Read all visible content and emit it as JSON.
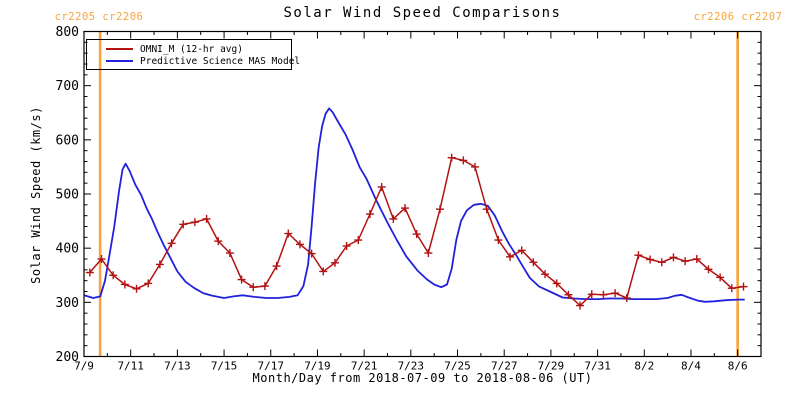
{
  "header": {
    "title": "Solar Wind Speed Comparisons",
    "carrington_label_left": "cr2205 cr2206",
    "carrington_label_right": "cr2206 cr2207"
  },
  "colors": {
    "omni_red": "#b31212",
    "mas_blue": "#2121dd",
    "carrington_orange": "#f7a43c",
    "axis": "#000000",
    "background": "#ffffff"
  },
  "chart_data": {
    "type": "line",
    "title": "Solar Wind Speed Comparisons",
    "xlabel": "Month/Day from 2018-07-09 to 2018-08-06 (UT)",
    "ylabel": "Solar Wind Speed (km/s)",
    "ylim": [
      200,
      800
    ],
    "y_major_ticks": [
      200,
      300,
      400,
      500,
      600,
      700,
      800
    ],
    "y_minor_step": 20,
    "x_day0_date": "2018-07-09",
    "x_range_days": [
      0,
      29
    ],
    "x_minor_step_days": 1,
    "x_major_ticks": [
      {
        "day": 0,
        "label": "7/9"
      },
      {
        "day": 2,
        "label": "7/11"
      },
      {
        "day": 4,
        "label": "7/13"
      },
      {
        "day": 6,
        "label": "7/15"
      },
      {
        "day": 8,
        "label": "7/17"
      },
      {
        "day": 10,
        "label": "7/19"
      },
      {
        "day": 12,
        "label": "7/21"
      },
      {
        "day": 14,
        "label": "7/23"
      },
      {
        "day": 16,
        "label": "7/25"
      },
      {
        "day": 18,
        "label": "7/27"
      },
      {
        "day": 20,
        "label": "7/29"
      },
      {
        "day": 22,
        "label": "7/31"
      },
      {
        "day": 24,
        "label": "8/2"
      },
      {
        "day": 26,
        "label": "8/4"
      },
      {
        "day": 28,
        "label": "8/6"
      }
    ],
    "grid": false,
    "legend_position": "top-left-inside",
    "vlines": [
      {
        "x_day": 0.69,
        "color": "#f7a43c"
      },
      {
        "x_day": 28.0,
        "color": "#f7a43c"
      }
    ],
    "series": [
      {
        "name": "OMNI_M (12-hr avg)",
        "color": "#b31212",
        "marker": "plus",
        "x_days": [
          0.25,
          0.75,
          1.25,
          1.75,
          2.25,
          2.75,
          3.25,
          3.75,
          4.25,
          4.75,
          5.25,
          5.75,
          6.25,
          6.75,
          7.25,
          7.75,
          8.25,
          8.75,
          9.25,
          9.75,
          10.25,
          10.75,
          11.25,
          11.75,
          12.25,
          12.75,
          13.25,
          13.75,
          14.25,
          14.75,
          15.25,
          15.75,
          16.25,
          16.75,
          17.25,
          17.75,
          18.25,
          18.75,
          19.25,
          19.75,
          20.25,
          20.75,
          21.25,
          21.75,
          22.25,
          22.75,
          23.25,
          23.75,
          24.25,
          24.75,
          25.25,
          25.75,
          26.25,
          26.75,
          27.25,
          27.75,
          28.25
        ],
        "values": [
          355,
          380,
          350,
          333,
          325,
          335,
          370,
          409,
          444,
          448,
          454,
          413,
          391,
          342,
          328,
          330,
          367,
          427,
          407,
          390,
          357,
          373,
          404,
          415,
          463,
          513,
          454,
          474,
          426,
          391,
          472,
          567,
          562,
          550,
          472,
          415,
          384,
          396,
          374,
          352,
          335,
          314,
          294,
          315,
          314,
          317,
          308,
          387,
          379,
          374,
          383,
          376,
          380,
          361,
          346,
          326,
          329
        ]
      },
      {
        "name": "Predictive Science MAS Model",
        "color": "#2121dd",
        "marker": "none",
        "x_days": [
          0.0,
          0.4,
          0.7,
          0.9,
          1.1,
          1.3,
          1.5,
          1.65,
          1.78,
          1.95,
          2.2,
          2.45,
          2.7,
          2.9,
          3.15,
          3.4,
          3.7,
          4.0,
          4.35,
          4.7,
          5.1,
          5.5,
          6.0,
          6.4,
          6.8,
          7.3,
          7.8,
          8.3,
          8.8,
          9.15,
          9.4,
          9.6,
          9.75,
          9.9,
          10.05,
          10.2,
          10.35,
          10.5,
          10.65,
          10.9,
          11.2,
          11.5,
          11.8,
          12.1,
          12.5,
          13.0,
          13.4,
          13.8,
          14.3,
          14.7,
          15.0,
          15.3,
          15.55,
          15.75,
          15.95,
          16.15,
          16.4,
          16.7,
          17.0,
          17.3,
          17.6,
          17.9,
          18.2,
          18.5,
          18.8,
          19.1,
          19.5,
          20.0,
          20.5,
          21.0,
          21.5,
          22.0,
          22.5,
          23.0,
          23.5,
          24.0,
          24.5,
          25.0,
          25.3,
          25.6,
          25.9,
          26.3,
          26.6,
          27.0,
          27.5,
          28.0,
          28.3
        ],
        "values": [
          313,
          308,
          311,
          340,
          390,
          440,
          505,
          545,
          556,
          543,
          517,
          498,
          472,
          455,
          430,
          407,
          382,
          357,
          338,
          327,
          317,
          312,
          308,
          311,
          313,
          310,
          308,
          308,
          310,
          313,
          330,
          370,
          440,
          520,
          585,
          625,
          648,
          658,
          651,
          632,
          610,
          582,
          550,
          528,
          490,
          447,
          415,
          385,
          358,
          342,
          333,
          328,
          333,
          362,
          415,
          450,
          470,
          480,
          482,
          478,
          460,
          432,
          408,
          388,
          366,
          345,
          329,
          319,
          309,
          307,
          306,
          306,
          307,
          307,
          306,
          306,
          306,
          308,
          312,
          314,
          309,
          303,
          301,
          302,
          304,
          305,
          305
        ]
      }
    ]
  }
}
